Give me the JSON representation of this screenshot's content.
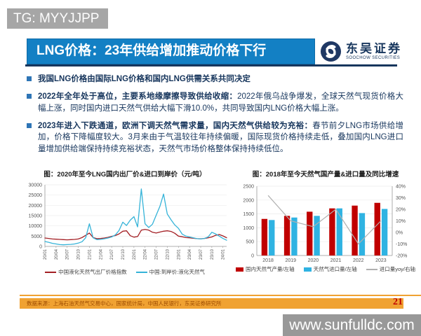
{
  "header": {
    "tg_badge": "TG: MYYJJPP"
  },
  "title_bar": {
    "text": "LNG价格：23年供给增加推动价格下行",
    "bg_color": "#1380c4"
  },
  "brand": {
    "name": "东吴证券",
    "subtitle": "SOOCHOW SECURITIES"
  },
  "bullets": [
    {
      "lead": "我国LNG价格由国际LNG价格和国内LNG供需关系共同决定",
      "rest": ""
    },
    {
      "lead": "2022年全年处于高位，主要系地缘摩擦导致供给收缩：",
      "rest": "2022年俄乌战争爆发，全球天然气现货价格大幅上涨，同时国内进口天然气供给大幅下滑10.0%，共同导致国内LNG价格大幅上涨。"
    },
    {
      "lead": "2023年进入下跌通道，欧洲下调天然气需求量，国内天然气供给较为充裕：",
      "rest": "春节前夕LNG市场供给增加，价格下降幅度较大。3月来由于气温较往年持续偏暖，国际现货价格持续走低，叠加国内LNG进口量增加供给端保持持续充裕状态，天然气市场价格整体保持持续低位。"
    }
  ],
  "footer": {
    "source": "数据来源：上海石油天然气交易中心，国家统计局，中国人民银行，东吴证券研究所",
    "page_number": "21"
  },
  "watermark": "www.sunfulldc.com",
  "chart_data": [
    {
      "id": "lng-price",
      "type": "line",
      "title": "图：2020年至今LNG国内出厂价&进口到岸价（元/吨）",
      "ylim": [
        0,
        30000
      ],
      "y_ticks": [
        0,
        5000,
        10000,
        15000,
        20000,
        25000,
        30000
      ],
      "tick_every": 3,
      "grid": true,
      "legend_position": "bottom",
      "x": [
        "20/01",
        "20/02",
        "20/03",
        "20/04",
        "20/05",
        "20/06",
        "20/07",
        "20/08",
        "20/09",
        "20/10",
        "20/11",
        "20/12",
        "21/01",
        "21/02",
        "21/03",
        "21/04",
        "21/05",
        "21/06",
        "21/07",
        "21/08",
        "21/09",
        "21/10",
        "21/11",
        "21/12",
        "22/01",
        "22/02",
        "22/03",
        "22/04",
        "22/05",
        "22/06",
        "22/07",
        "22/08",
        "22/09",
        "22/10",
        "22/11",
        "22/12",
        "23/01",
        "23/02",
        "23/03",
        "23/04",
        "23/05",
        "23/06",
        "23/07",
        "23/08",
        "23/09",
        "23/10",
        "23/11",
        "23/12",
        "24/01",
        "24/02"
      ],
      "series": [
        {
          "name": "中国液化天然气出厂价格指数",
          "type": "line",
          "color": "#a31f24",
          "values": [
            4100,
            3900,
            3600,
            3500,
            3400,
            3300,
            3200,
            3300,
            3400,
            3600,
            4300,
            5400,
            6500,
            4300,
            3800,
            3900,
            4100,
            4400,
            4900,
            5300,
            6100,
            7400,
            7600,
            5200,
            4500,
            4800,
            7900,
            8300,
            7900,
            6900,
            6500,
            7000,
            7400,
            7600,
            7300,
            6400,
            5000,
            4700,
            4300,
            4200,
            4000,
            3800,
            3700,
            3900,
            4200,
            4600,
            5400,
            5800,
            5100,
            4200
          ]
        },
        {
          "name": "中国:到岸价:液化天然气",
          "type": "line",
          "color": "#35b3d8",
          "values": [
            2400,
            2000,
            1500,
            1200,
            900,
            800,
            900,
            1000,
            1200,
            1600,
            2300,
            4200,
            11000,
            4200,
            3300,
            3400,
            3700,
            4100,
            4600,
            5600,
            7800,
            11800,
            10200,
            12800,
            14500,
            9500,
            28000,
            11000,
            9200,
            10800,
            15200,
            19500,
            25500,
            15800,
            13000,
            10500,
            8800,
            6000,
            5000,
            4600,
            4200,
            3800,
            3600,
            3900,
            4600,
            6900,
            6100,
            5000,
            3900,
            3000
          ]
        }
      ]
    },
    {
      "id": "gas-supply",
      "type": "bar+line",
      "title": "图：2018年至今天然气国产量&进口量及同比增速",
      "categories": [
        "2018",
        "2019",
        "2020",
        "2021",
        "2022",
        "2023"
      ],
      "left_ylim": [
        0,
        2500
      ],
      "left_ticks": [
        0,
        500,
        1000,
        1500,
        2000,
        2500
      ],
      "right_ylim": [
        -20,
        40
      ],
      "right_ticks": [
        "40%",
        "30%",
        "20%",
        "10%",
        "0%",
        "-10%",
        "-20%"
      ],
      "grid": true,
      "legend_position": "bottom",
      "series": [
        {
          "name": "国内天然气产量/左轴",
          "type": "bar",
          "axis": "left",
          "color": "#c00000",
          "values": [
            1320,
            1430,
            1580,
            1700,
            1800,
            1900
          ]
        },
        {
          "name": "天然气进口量/左轴",
          "type": "bar",
          "axis": "left",
          "color": "#2fb3e2",
          "values": [
            1280,
            1370,
            1430,
            1700,
            1530,
            1680
          ]
        },
        {
          "name": "进口量yoy/右轴",
          "type": "line",
          "axis": "right",
          "color": "#b0b0b0",
          "values": [
            32,
            10,
            5,
            20,
            -10,
            10
          ]
        }
      ]
    }
  ]
}
